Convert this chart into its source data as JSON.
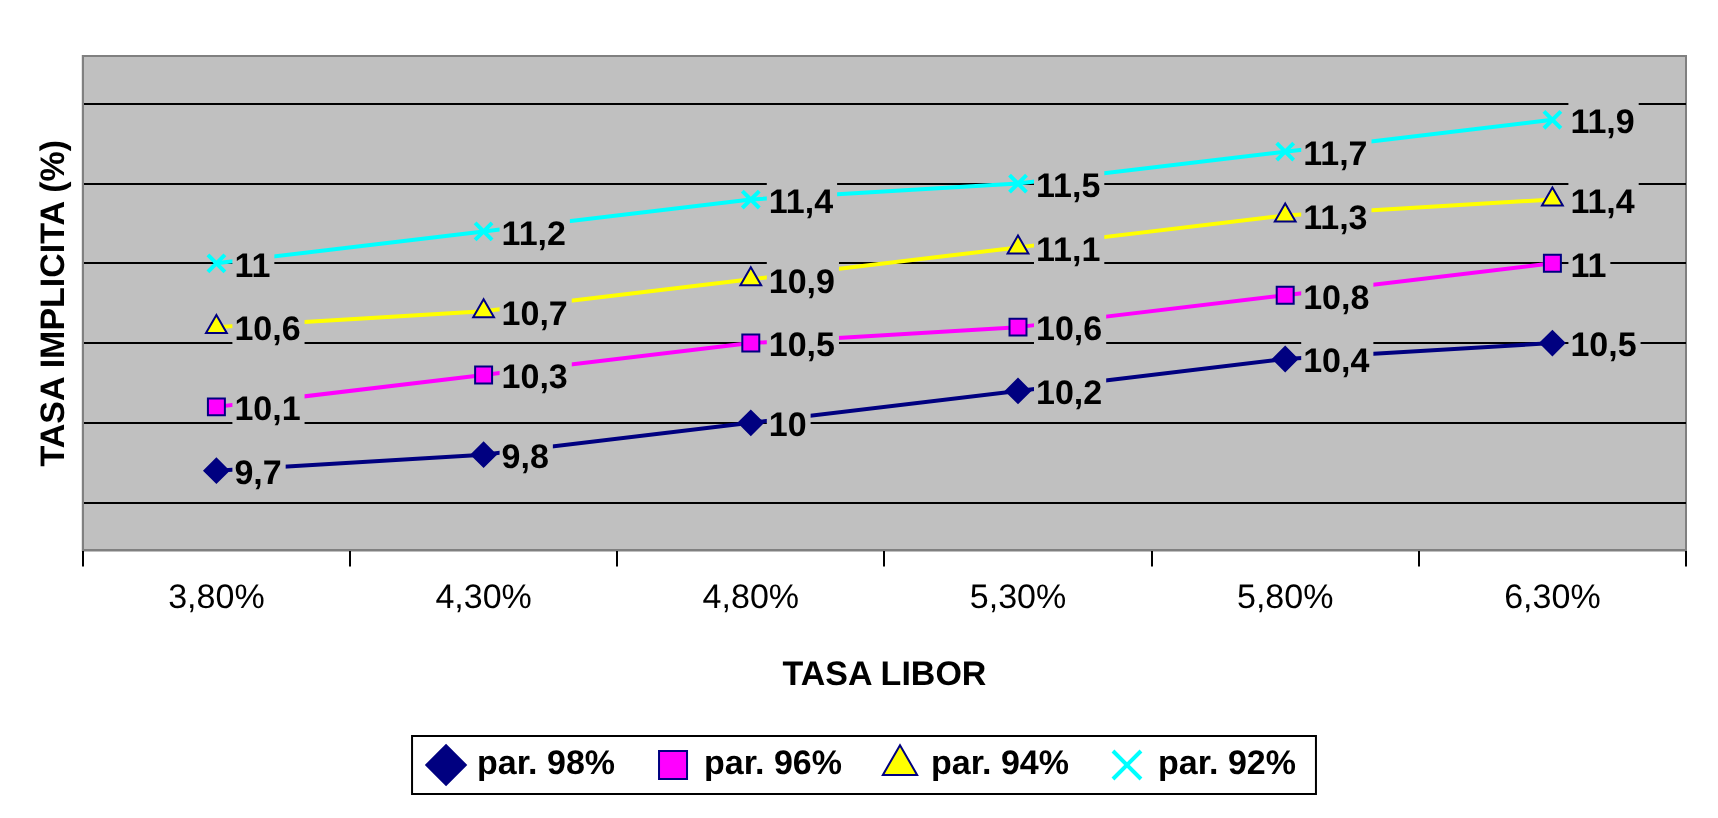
{
  "chart_data": {
    "type": "line",
    "xlabel": "TASA LIBOR",
    "ylabel": "TASA IMPLICITA (%)",
    "categories": [
      "3,80%",
      "4,30%",
      "4,80%",
      "5,30%",
      "5,80%",
      "6,30%"
    ],
    "series": [
      {
        "name": "par. 98%",
        "color": "#000080",
        "marker": "diamond",
        "values": [
          9.7,
          9.8,
          10,
          10.2,
          10.4,
          10.5
        ],
        "value_labels": [
          "9,7",
          "9,8",
          "10",
          "10,2",
          "10,4",
          "10,5"
        ]
      },
      {
        "name": "par. 96%",
        "color": "#ff00ff",
        "marker": "square",
        "values": [
          10.1,
          10.3,
          10.5,
          10.6,
          10.8,
          11
        ],
        "value_labels": [
          "10,1",
          "10,3",
          "10,5",
          "10,6",
          "10,8",
          "11"
        ]
      },
      {
        "name": "par. 94%",
        "color": "#ffff00",
        "marker": "triangle",
        "values": [
          10.6,
          10.7,
          10.9,
          11.1,
          11.3,
          11.4
        ],
        "value_labels": [
          "10,6",
          "10,7",
          "10,9",
          "11,1",
          "11,3",
          "11,4"
        ]
      },
      {
        "name": "par. 92%",
        "color": "#00ffff",
        "marker": "cross",
        "values": [
          11,
          11.2,
          11.4,
          11.5,
          11.7,
          11.9
        ],
        "value_labels": [
          "11",
          "11,2",
          "11,4",
          "11,5",
          "11,7",
          "11,9"
        ]
      }
    ],
    "ylim": [
      9.2,
      12.3
    ],
    "yticks": [
      {
        "value": 9.5,
        "label": null
      },
      {
        "value": 10,
        "label": null
      },
      {
        "value": 10.5,
        "label": null
      },
      {
        "value": 11,
        "label": null
      },
      {
        "value": 11.5,
        "label": null
      },
      {
        "value": 12,
        "label": null
      }
    ],
    "tick_labels": "x",
    "grid": "y",
    "legend": "bottom",
    "line_style": "solid"
  }
}
